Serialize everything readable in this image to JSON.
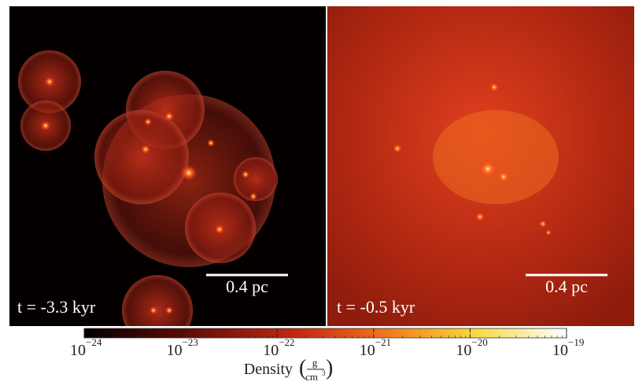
{
  "panels": [
    {
      "time_label": "t = -3.3 kyr",
      "scale_bar": "0.4 pc"
    },
    {
      "time_label": "t = -0.5 kyr",
      "scale_bar": "0.4 pc"
    }
  ],
  "colorbar": {
    "label": "Density",
    "unit_numerator": "g",
    "unit_denominator": "cm",
    "unit_exponent": "3",
    "log_scale": true,
    "lim": [
      1e-24,
      1e-19
    ],
    "ticks": [
      {
        "value": 1e-24,
        "base": "10",
        "exponent": "−24"
      },
      {
        "value": 1e-23,
        "base": "10",
        "exponent": "−23"
      },
      {
        "value": 1e-22,
        "base": "10",
        "exponent": "−22"
      },
      {
        "value": 1e-21,
        "base": "10",
        "exponent": "−21"
      },
      {
        "value": 1e-20,
        "base": "10",
        "exponent": "−20"
      },
      {
        "value": 1e-19,
        "base": "10",
        "exponent": "−19"
      }
    ]
  }
}
